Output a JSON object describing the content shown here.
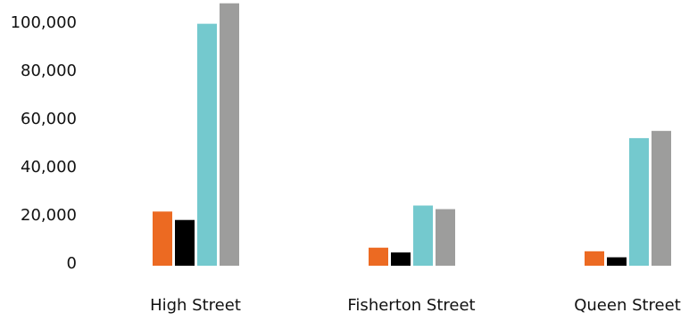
{
  "chart_data": {
    "type": "bar",
    "categories": [
      "High Street",
      "Fisherton Street",
      "Queen Street"
    ],
    "series": [
      {
        "color": "#ec6a22",
        "values": [
          22500,
          7500,
          6000
        ]
      },
      {
        "color": "#000000",
        "values": [
          19000,
          5500,
          3500
        ]
      },
      {
        "color": "#74c9ce",
        "values": [
          100500,
          25000,
          53000
        ]
      },
      {
        "color": "#9d9d9c",
        "values": [
          109000,
          23500,
          56000
        ]
      }
    ],
    "yticks": [
      {
        "value": 0,
        "label": "0"
      },
      {
        "value": 20000,
        "label": "20,000"
      },
      {
        "value": 40000,
        "label": "40,000"
      },
      {
        "value": 60000,
        "label": "60,000"
      },
      {
        "value": 80000,
        "label": "80,000"
      },
      {
        "value": 100000,
        "label": "100,000"
      }
    ],
    "ylim": [
      0,
      110000
    ],
    "grid": false,
    "legend": "none"
  }
}
